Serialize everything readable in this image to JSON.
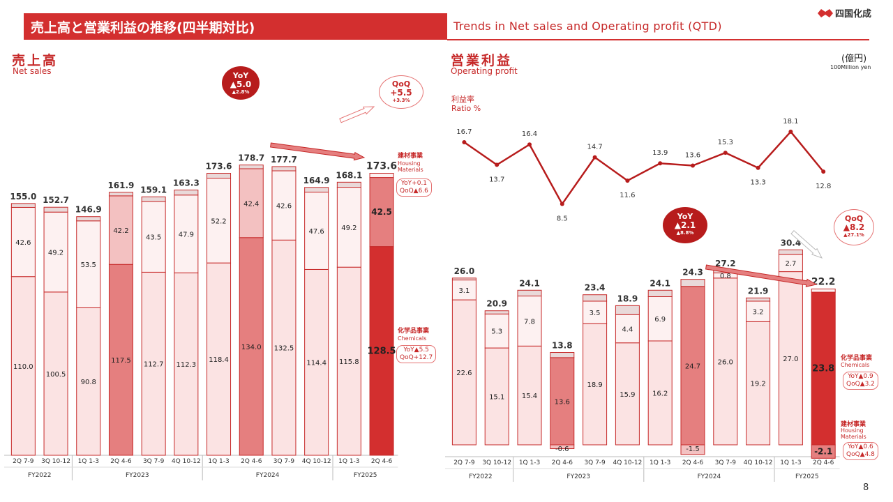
{
  "header": {
    "title_jp": "売上高と営業利益の推移(四半期対比)",
    "title_en": "Trends in Net sales and Operating profit (QTD)",
    "logo_text": "四国化成",
    "page_number": "8"
  },
  "colors": {
    "accent": "#d32f2f",
    "dark": "#b71c1c",
    "light": "#fbe3e3",
    "mid": "#f3c1c1",
    "strong": "#e57f7f",
    "top": "#fdf1f1",
    "grey": "#e9d9d9"
  },
  "net_sales": {
    "title_jp": "売上高",
    "title_en": "Net sales",
    "callout_yoy": {
      "l1": "YoY",
      "l2": "▲5.0",
      "l3": "▲2.8%"
    },
    "callout_qoq": {
      "l1": "QoQ",
      "l2": "+5.5",
      "l3": "+3.3%"
    },
    "housing_jp": "建材事業",
    "housing_en": "Housing Materials",
    "housing_change": [
      "YoY+0.1",
      "QoQ▲6.6"
    ],
    "chem_jp": "化学品事業",
    "chem_en": "Chemicals",
    "chem_change": [
      "YoY▲5.5",
      "QoQ+12.7"
    ]
  },
  "operating_profit": {
    "title_jp": "営業利益",
    "title_en": "Operating profit",
    "unit_jp": "(億円)",
    "unit_en": "100Million yen",
    "ratio_jp": "利益率",
    "ratio_en": "Ratio %",
    "callout_yoy": {
      "l1": "YoY",
      "l2": "▲2.1",
      "l3": "▲8.8%"
    },
    "callout_qoq": {
      "l1": "QoQ",
      "l2": "▲8.2",
      "l3": "▲27.1%"
    },
    "chem_jp": "化学品事業",
    "chem_en": "Chemicals",
    "chem_change": [
      "YoY▲0.9",
      "QoQ▲3.2"
    ],
    "housing_jp": "建材事業",
    "housing_en": "Housing Materials",
    "housing_change": [
      "YoY▲0.6",
      "QoQ▲4.8"
    ]
  },
  "chart_data": [
    {
      "type": "bar",
      "title": "売上高 Net sales",
      "categories": [
        "2Q 7-9",
        "3Q 10-12",
        "1Q 1-3",
        "2Q 4-6",
        "3Q 7-9",
        "4Q 10-12",
        "1Q 1-3",
        "2Q 4-6",
        "3Q 7-9",
        "4Q 10-12",
        "1Q 1-3",
        "2Q 4-6"
      ],
      "fiscal_years": [
        {
          "label": "FY2022",
          "span": 2
        },
        {
          "label": "FY2023",
          "span": 4
        },
        {
          "label": "FY2024",
          "span": 4
        },
        {
          "label": "FY2025",
          "span": 2
        }
      ],
      "series": [
        {
          "name": "化学品事業 Chemicals",
          "values": [
            110.0,
            100.5,
            90.8,
            117.5,
            112.7,
            112.3,
            118.4,
            134.0,
            132.5,
            114.4,
            115.8,
            128.5
          ]
        },
        {
          "name": "建材事業 Housing Materials",
          "values": [
            42.6,
            49.2,
            53.5,
            42.2,
            43.5,
            47.9,
            52.2,
            42.4,
            42.6,
            47.6,
            49.2,
            42.5
          ]
        },
        {
          "name": "",
          "values": [
            2.4,
            3.0,
            2.6,
            2.2,
            2.9,
            3.1,
            3.0,
            2.3,
            2.6,
            2.9,
            3.1,
            2.6
          ]
        }
      ],
      "totals": [
        155.0,
        152.7,
        146.9,
        161.9,
        159.1,
        163.3,
        173.6,
        178.7,
        177.7,
        164.9,
        168.1,
        173.6
      ],
      "segment_labels": [
        [
          "110.0",
          "42.6"
        ],
        [
          "100.5",
          "49.2"
        ],
        [
          "90.8",
          "53.5"
        ],
        [
          "117.5",
          "42.2"
        ],
        [
          "112.7",
          "43.5"
        ],
        [
          "112.3",
          "47.9"
        ],
        [
          "118.4",
          "52.2"
        ],
        [
          "134.0",
          "42.4"
        ],
        [
          "132.5",
          "42.6"
        ],
        [
          "114.4",
          "47.6"
        ],
        [
          "115.8",
          "49.2"
        ],
        [
          "128.5",
          "42.5"
        ]
      ],
      "highlight": [
        3,
        7,
        11
      ],
      "ylim": [
        0,
        195
      ]
    },
    {
      "type": "bar",
      "title": "営業利益 Operating profit",
      "categories": [
        "2Q 7-9",
        "3Q 10-12",
        "1Q 1-3",
        "2Q 4-6",
        "3Q 7-9",
        "4Q 10-12",
        "1Q 1-3",
        "2Q 4-6",
        "3Q 7-9",
        "4Q 10-12",
        "1Q 1-3",
        "2Q 4-6"
      ],
      "fiscal_years": [
        {
          "label": "FY2022",
          "span": 2
        },
        {
          "label": "FY2023",
          "span": 4
        },
        {
          "label": "FY2024",
          "span": 4
        },
        {
          "label": "FY2025",
          "span": 2
        }
      ],
      "series": [
        {
          "name": "化学品事業 Chemicals",
          "values": [
            22.6,
            15.1,
            15.4,
            13.6,
            18.9,
            15.9,
            16.2,
            24.7,
            26.0,
            19.2,
            27.0,
            23.8
          ]
        },
        {
          "name": "建材事業 Housing Materials",
          "values": [
            3.1,
            5.3,
            7.8,
            -0.6,
            3.5,
            4.4,
            6.9,
            -1.5,
            0.8,
            3.2,
            2.7,
            -2.1
          ]
        },
        {
          "name": "",
          "values": [
            0.3,
            0.5,
            0.9,
            0.8,
            1.0,
            -1.4,
            1.0,
            1.1,
            0.4,
            -0.5,
            0.7,
            0.5
          ]
        }
      ],
      "totals": [
        26.0,
        20.9,
        24.1,
        13.8,
        23.4,
        18.9,
        24.1,
        24.3,
        27.2,
        21.9,
        30.4,
        22.2
      ],
      "segment_labels": [
        [
          "22.6",
          "3.1"
        ],
        [
          "15.1",
          "5.3"
        ],
        [
          "15.4",
          "7.8"
        ],
        [
          "13.6",
          "-0.6"
        ],
        [
          "18.9",
          "3.5"
        ],
        [
          "15.9",
          "4.4"
        ],
        [
          "16.2",
          "6.9"
        ],
        [
          "24.7",
          "-1.5"
        ],
        [
          "26.0",
          "0.8"
        ],
        [
          "19.2",
          "3.2"
        ],
        [
          "27.0",
          "2.7"
        ],
        [
          "23.8",
          "-2.1"
        ]
      ],
      "highlight": [
        3,
        7,
        11
      ],
      "ylim": [
        -3,
        33
      ]
    },
    {
      "type": "line",
      "title": "利益率 Ratio %",
      "categories": [
        "2Q 7-9",
        "3Q 10-12",
        "1Q 1-3",
        "2Q 4-6",
        "3Q 7-9",
        "4Q 10-12",
        "1Q 1-3",
        "2Q 4-6",
        "3Q 7-9",
        "4Q 10-12",
        "1Q 1-3",
        "2Q 4-6"
      ],
      "values": [
        16.7,
        13.7,
        16.4,
        8.5,
        14.7,
        11.6,
        13.9,
        13.6,
        15.3,
        13.3,
        18.1,
        12.8
      ],
      "ylim": [
        5,
        20
      ]
    }
  ]
}
